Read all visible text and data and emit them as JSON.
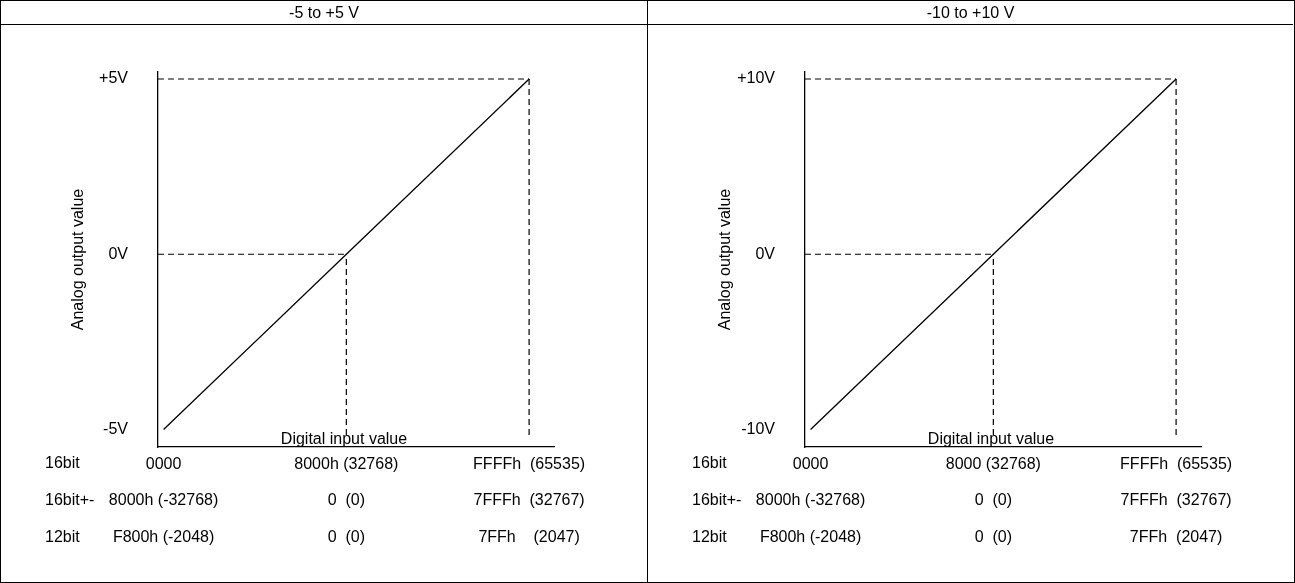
{
  "chart_data": [
    {
      "type": "line",
      "title": "-5 to +5 V",
      "xlabel": "Digital input value",
      "ylabel": "Analog output value",
      "x": [
        0,
        32768,
        65535
      ],
      "series": [
        {
          "color": "#000000",
          "values": [
            -5,
            0,
            5
          ]
        }
      ],
      "xlim": [
        -1000,
        70000
      ],
      "xticks": [
        {
          "value": 0,
          "label": "0000"
        },
        {
          "value": 32768,
          "label": "8000h (32768)"
        },
        {
          "value": 65535,
          "label": "FFFFh  (65535)"
        }
      ],
      "ylim": [
        -5.5,
        5.2
      ],
      "yticks": [
        {
          "value": 5,
          "label": "+5V"
        },
        {
          "value": 0,
          "label": "0V"
        },
        {
          "value": -5,
          "label": "-5V"
        }
      ],
      "ref_lines": [
        {
          "axis": "y",
          "value": 5
        },
        {
          "axis": "y",
          "value": 0
        },
        {
          "axis": "x",
          "value": 32768
        },
        {
          "axis": "x",
          "value": 65535
        }
      ],
      "line_style": "solid",
      "marker": "none",
      "grid": false,
      "legend": false,
      "annotations": [
        "16bit",
        "16bit+-",
        "12bit",
        "8000h (-32768)",
        "0  (0)",
        "7FFFh  (32767)",
        "F800h (-2048)",
        "0  (0)",
        "7FFh    (2047)"
      ]
    },
    {
      "type": "line",
      "title": "-10 to +10 V",
      "xlabel": "Digital input value",
      "ylabel": "Analog output value",
      "x": [
        0,
        32768,
        65535
      ],
      "series": [
        {
          "color": "#000000",
          "values": [
            -10,
            0,
            10
          ]
        }
      ],
      "xlim": [
        -1000,
        70000
      ],
      "xticks": [
        {
          "value": 0,
          "label": "0000"
        },
        {
          "value": 32768,
          "label": "8000 (32768)"
        },
        {
          "value": 65535,
          "label": "FFFFh  (65535)"
        }
      ],
      "ylim": [
        -11,
        10.4
      ],
      "yticks": [
        {
          "value": 10,
          "label": "+10V"
        },
        {
          "value": 0,
          "label": "0V"
        },
        {
          "value": -10,
          "label": "-10V"
        }
      ],
      "ref_lines": [
        {
          "axis": "y",
          "value": 10
        },
        {
          "axis": "y",
          "value": 0
        },
        {
          "axis": "x",
          "value": 32768
        },
        {
          "axis": "x",
          "value": 65535
        }
      ],
      "line_style": "solid",
      "marker": "none",
      "grid": false,
      "legend": false,
      "annotations": [
        "16bit",
        "16bit+-",
        "12bit",
        "8000h (-32768)",
        "0  (0)",
        "7FFFh  (32767)",
        "F800h (-2048)",
        "0  (0)",
        "7FFh  (2047)"
      ]
    }
  ]
}
